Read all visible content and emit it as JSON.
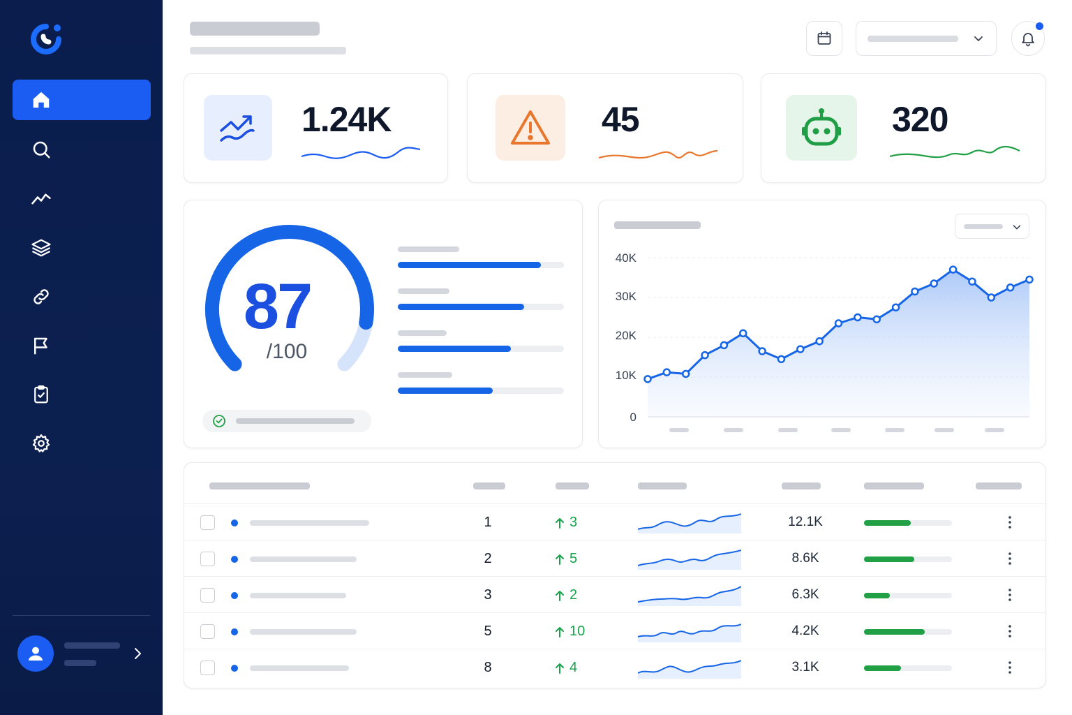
{
  "colors": {
    "sidebar": "#0a1d4d",
    "accent": "#1b5cf2",
    "warning": "#e8762c",
    "success": "#22a046"
  },
  "sidebar": {
    "logo": "logo-mark",
    "items": [
      {
        "icon": "home-icon",
        "active": true
      },
      {
        "icon": "search-icon",
        "active": false
      },
      {
        "icon": "trend-icon",
        "active": false
      },
      {
        "icon": "layers-icon",
        "active": false
      },
      {
        "icon": "link-icon",
        "active": false
      },
      {
        "icon": "flag-icon",
        "active": false
      },
      {
        "icon": "clipboard-check-icon",
        "active": false
      },
      {
        "icon": "gear-icon",
        "active": false
      }
    ],
    "user": {
      "avatar_icon": "user-icon"
    }
  },
  "header": {
    "calendar_icon": "calendar-icon",
    "notification_icon": "bell-icon"
  },
  "kpis": [
    {
      "value": "1.24K",
      "icon": "trend-up-icon",
      "color": "#1b5cf2"
    },
    {
      "value": "45",
      "icon": "warning-icon",
      "color": "#e8762c"
    },
    {
      "value": "320",
      "icon": "robot-icon",
      "color": "#22a046"
    }
  ],
  "score": {
    "value": "87",
    "denominator": "/100",
    "fraction": 0.87,
    "bars": [
      0.86,
      0.76,
      0.68,
      0.57
    ]
  },
  "chart_data": {
    "type": "area",
    "y_ticks": [
      "40K",
      "30K",
      "20K",
      "10K",
      "0"
    ],
    "ylim": [
      0,
      40000
    ],
    "values": [
      9500,
      11200,
      10800,
      15500,
      18000,
      21000,
      16500,
      14500,
      17000,
      19000,
      23500,
      25000,
      24500,
      27500,
      31500,
      33500,
      37000,
      34000,
      30000,
      32500,
      34500
    ],
    "grid": true,
    "legend": "none"
  },
  "table": {
    "rows": [
      {
        "rank": "1",
        "change": "3",
        "volume": "12.1K",
        "progress": 0.53
      },
      {
        "rank": "2",
        "change": "5",
        "volume": "8.6K",
        "progress": 0.57
      },
      {
        "rank": "3",
        "change": "2",
        "volume": "6.3K",
        "progress": 0.29
      },
      {
        "rank": "5",
        "change": "10",
        "volume": "4.2K",
        "progress": 0.69
      },
      {
        "rank": "8",
        "change": "4",
        "volume": "3.1K",
        "progress": 0.42
      }
    ]
  }
}
